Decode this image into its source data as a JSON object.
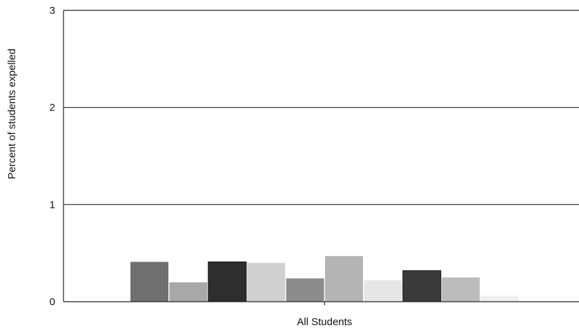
{
  "chart_data": {
    "type": "bar",
    "categories": [
      "All Students"
    ],
    "ylabel": "Percent of students expelled",
    "xlabel": "",
    "ylim": [
      0,
      3
    ],
    "yticks": [
      0,
      1,
      2,
      3
    ],
    "grid": true,
    "series": [
      {
        "values": [
          0.41
        ],
        "color": "#707070"
      },
      {
        "values": [
          0.2
        ],
        "color": "#a8a8a8"
      },
      {
        "values": [
          0.41
        ],
        "color": "#2e2e2e"
      },
      {
        "values": [
          0.4
        ],
        "color": "#d0d0d0"
      },
      {
        "values": [
          0.24
        ],
        "color": "#8c8c8c"
      },
      {
        "values": [
          0.47
        ],
        "color": "#b4b4b4"
      },
      {
        "values": [
          0.22
        ],
        "color": "#e6e6e6"
      },
      {
        "values": [
          0.32
        ],
        "color": "#3a3a3a"
      },
      {
        "values": [
          0.25
        ],
        "color": "#bcbcbc"
      },
      {
        "values": [
          0.06
        ],
        "color": "#efefef"
      }
    ]
  }
}
